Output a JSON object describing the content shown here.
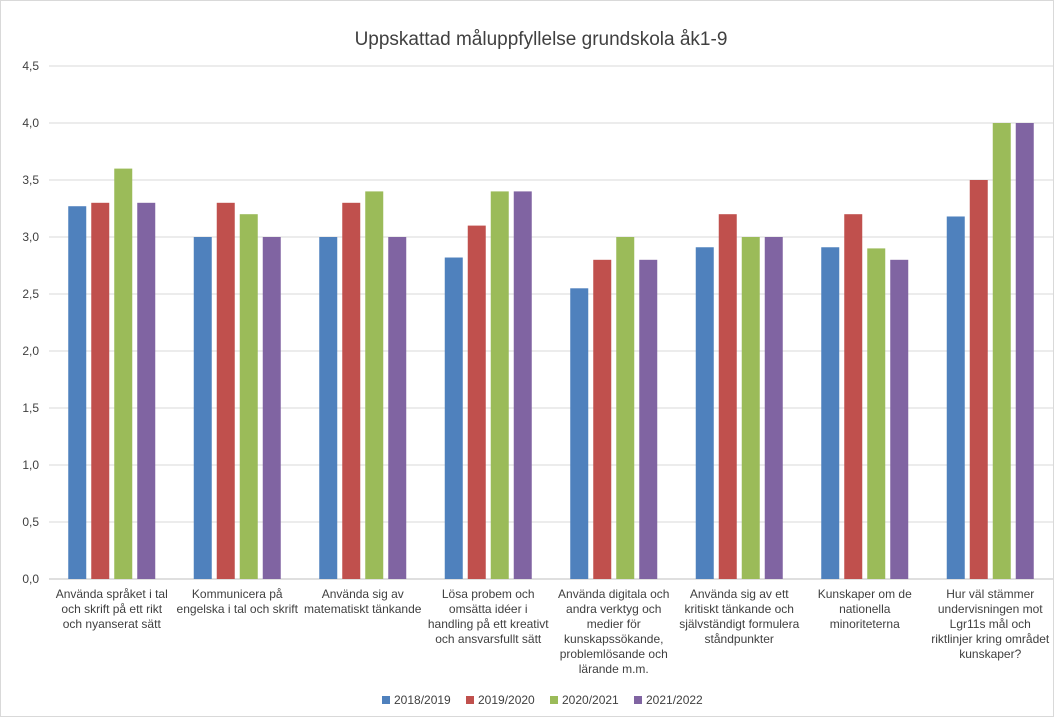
{
  "chart_data": {
    "type": "bar",
    "title": "Uppskattad måluppfyllelse grundskola åk1-9",
    "xlabel": "",
    "ylabel": "",
    "ylim": [
      0,
      4.5
    ],
    "yticks": [
      "0,0",
      "0,5",
      "1,0",
      "1,5",
      "2,0",
      "2,5",
      "3,0",
      "3,5",
      "4,0",
      "4,5"
    ],
    "grid": true,
    "legend_position": "bottom",
    "categories": [
      [
        "Använda språket i tal",
        "och skrift på ett rikt",
        "och nyanserat sätt"
      ],
      [
        "Kommunicera på",
        "engelska i tal och skrift"
      ],
      [
        "Använda sig av",
        "matematiskt tänkande"
      ],
      [
        "Lösa probem och",
        "omsätta idéer i",
        "handling på ett kreativt",
        "och ansvarsfullt sätt"
      ],
      [
        "Använda digitala och",
        "andra verktyg och",
        "medier för",
        "kunskapssökande,",
        "problemlösande och",
        "lärande m.m."
      ],
      [
        "Använda sig av ett",
        "kritiskt tänkande och",
        "självständigt formulera",
        "ståndpunkter"
      ],
      [
        "Kunskaper om de",
        "nationella",
        "minoriteterna"
      ],
      [
        "Hur väl stämmer",
        "undervisningen mot",
        "Lgr11s mål och",
        "riktlinjer kring området",
        "kunskaper?"
      ]
    ],
    "series": [
      {
        "name": "2018/2019",
        "color": "#4f81bd",
        "values": [
          3.27,
          3.0,
          3.0,
          2.82,
          2.55,
          2.91,
          2.91,
          3.18
        ]
      },
      {
        "name": "2019/2020",
        "color": "#c0504d",
        "values": [
          3.3,
          3.3,
          3.3,
          3.1,
          2.8,
          3.2,
          3.2,
          3.5
        ]
      },
      {
        "name": "2020/2021",
        "color": "#9bbb59",
        "values": [
          3.6,
          3.2,
          3.4,
          3.4,
          3.0,
          3.0,
          2.9,
          4.0
        ]
      },
      {
        "name": "2021/2022",
        "color": "#8064a2",
        "values": [
          3.3,
          3.0,
          3.0,
          3.4,
          2.8,
          3.0,
          2.8,
          4.0
        ]
      }
    ]
  }
}
